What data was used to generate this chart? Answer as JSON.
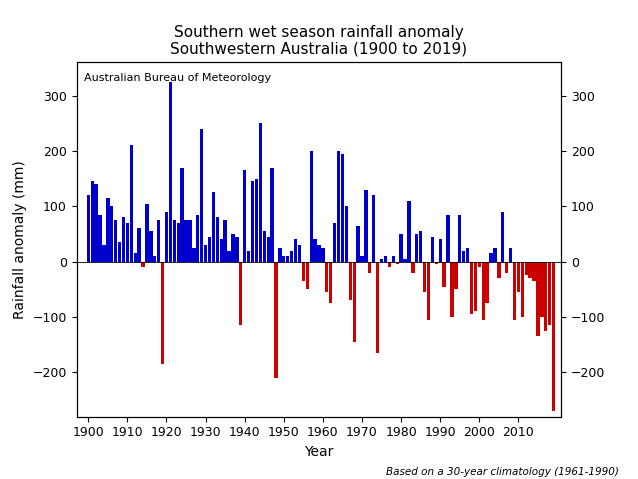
{
  "title": "Southern wet season rainfall anomaly\nSouthwestern Australia (1900 to 2019)",
  "xlabel": "Year",
  "ylabel": "Rainfall anomaly (mm)",
  "watermark": "Australian Bureau of Meteorology",
  "footnote": "Based on a 30-year climatology (1961-1990)",
  "ylim": [
    -280,
    360
  ],
  "yticks": [
    -200,
    -100,
    0,
    100,
    200,
    300
  ],
  "years": [
    1900,
    1901,
    1902,
    1903,
    1904,
    1905,
    1906,
    1907,
    1908,
    1909,
    1910,
    1911,
    1912,
    1913,
    1914,
    1915,
    1916,
    1917,
    1918,
    1919,
    1920,
    1921,
    1922,
    1923,
    1924,
    1925,
    1926,
    1927,
    1928,
    1929,
    1930,
    1931,
    1932,
    1933,
    1934,
    1935,
    1936,
    1937,
    1938,
    1939,
    1940,
    1941,
    1942,
    1943,
    1944,
    1945,
    1946,
    1947,
    1948,
    1949,
    1950,
    1951,
    1952,
    1953,
    1954,
    1955,
    1956,
    1957,
    1958,
    1959,
    1960,
    1961,
    1962,
    1963,
    1964,
    1965,
    1966,
    1967,
    1968,
    1969,
    1970,
    1971,
    1972,
    1973,
    1974,
    1975,
    1976,
    1977,
    1978,
    1979,
    1980,
    1981,
    1982,
    1983,
    1984,
    1985,
    1986,
    1987,
    1988,
    1989,
    1990,
    1991,
    1992,
    1993,
    1994,
    1995,
    1996,
    1997,
    1998,
    1999,
    2000,
    2001,
    2002,
    2003,
    2004,
    2005,
    2006,
    2007,
    2008,
    2009,
    2010,
    2011,
    2012,
    2013,
    2014,
    2015,
    2016,
    2017,
    2018,
    2019
  ],
  "values": [
    120,
    145,
    140,
    85,
    30,
    115,
    100,
    75,
    35,
    80,
    70,
    210,
    15,
    60,
    -10,
    105,
    55,
    10,
    75,
    -185,
    90,
    325,
    75,
    70,
    170,
    75,
    75,
    25,
    85,
    240,
    30,
    45,
    125,
    80,
    40,
    75,
    20,
    50,
    45,
    -115,
    165,
    20,
    145,
    150,
    250,
    55,
    45,
    170,
    -210,
    25,
    10,
    10,
    20,
    40,
    30,
    -35,
    -50,
    200,
    40,
    30,
    25,
    -55,
    -75,
    70,
    200,
    195,
    100,
    -70,
    -145,
    65,
    10,
    130,
    -20,
    120,
    -165,
    5,
    10,
    -10,
    10,
    -5,
    50,
    5,
    110,
    -20,
    50,
    55,
    -55,
    -105,
    45,
    -5,
    40,
    -45,
    85,
    -100,
    -50,
    85,
    20,
    25,
    -95,
    -90,
    -10,
    -105,
    -75,
    15,
    25,
    -30,
    90,
    -20,
    25,
    -105,
    -55,
    -100,
    -25,
    -30,
    -35,
    -135,
    -100,
    -125,
    -115,
    -270
  ],
  "blue_color": "#0000cc",
  "red_color": "#cc0000",
  "bg_color": "#ffffff",
  "title_fontsize": 11,
  "label_fontsize": 10,
  "tick_fontsize": 9,
  "watermark_fontsize": 8,
  "footnote_fontsize": 7.5,
  "xtick_years": [
    1900,
    1910,
    1920,
    1930,
    1940,
    1950,
    1960,
    1970,
    1980,
    1990,
    2000,
    2010
  ],
  "xlim_left": 1897,
  "xlim_right": 2021
}
